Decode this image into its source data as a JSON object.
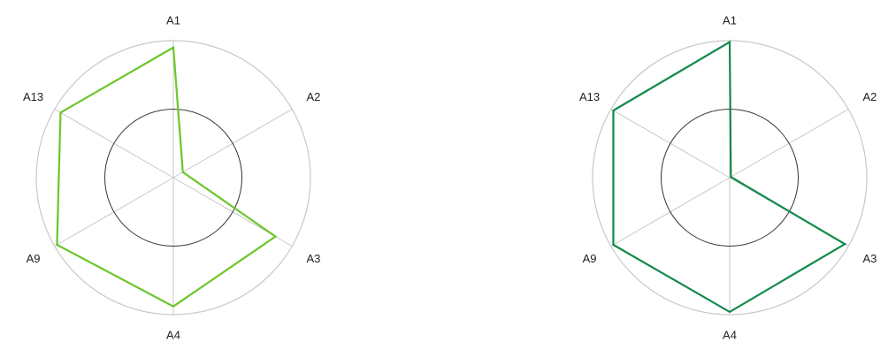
{
  "chart_data": [
    {
      "type": "radar",
      "axes": [
        "A1",
        "A2",
        "A3",
        "A4",
        "A9",
        "A13"
      ],
      "rmax": 1.0,
      "reference_circle": 0.5,
      "grid": "outer circle and spokes",
      "series": [
        {
          "values": [
            0.95,
            0.08,
            0.86,
            0.94,
            0.98,
            0.95
          ],
          "color": "#6cc62b"
        }
      ]
    },
    {
      "type": "radar",
      "axes": [
        "A1",
        "A2",
        "A3",
        "A4",
        "A9",
        "A13"
      ],
      "rmax": 1.0,
      "reference_circle": 0.5,
      "grid": "outer circle and spokes",
      "series": [
        {
          "values": [
            0.99,
            0.01,
            0.97,
            0.98,
            0.98,
            0.98
          ],
          "color": "#0f8a4a"
        }
      ]
    }
  ]
}
